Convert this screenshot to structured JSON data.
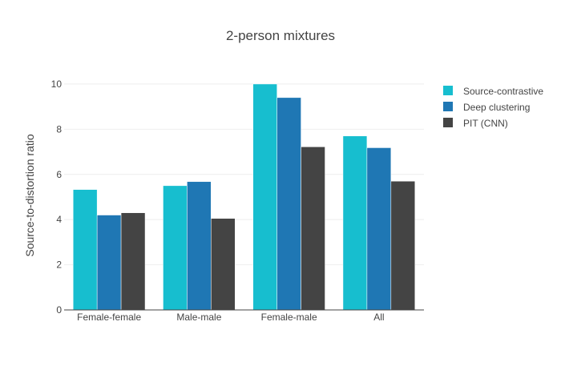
{
  "chart_data": {
    "type": "bar",
    "title": "2-person mixtures",
    "xlabel": "",
    "ylabel": "Source-to-distortion ratio",
    "categories": [
      "Female-female",
      "Male-male",
      "Female-male",
      "All"
    ],
    "series": [
      {
        "name": "Source-contrastive",
        "color": "#17becf",
        "values": [
          5.33,
          5.5,
          10.0,
          7.7
        ]
      },
      {
        "name": "Deep clustering",
        "color": "#1f77b4",
        "values": [
          4.2,
          5.68,
          9.4,
          7.18
        ]
      },
      {
        "name": "PIT (CNN)",
        "color": "#444444",
        "values": [
          4.3,
          4.05,
          7.22,
          5.7
        ]
      }
    ],
    "ylim": [
      0,
      10.6
    ],
    "yticks": [
      0,
      2,
      4,
      6,
      8,
      10
    ],
    "grid": true,
    "legend": "top-right"
  }
}
